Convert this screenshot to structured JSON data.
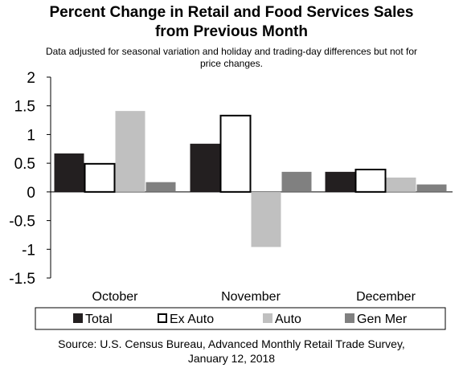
{
  "title_line1": "Percent Change in Retail and Food Services Sales",
  "title_line2": "from Previous Month",
  "subtitle_line1": "Data adjusted for seasonal variation and holiday and trading-day differences but not for",
  "subtitle_line2": "price changes.",
  "source_line1": "Source: U.S. Census Bureau, Advanced Monthly Retail Trade Survey,",
  "source_line2": "January 12, 2018",
  "colors": {
    "Total": "#231f20",
    "Ex Auto": "#ffffff",
    "Auto": "#c0c0c0",
    "Gen Mer": "#808080",
    "outline": "#000000"
  },
  "chart_data": {
    "type": "bar",
    "categories": [
      "October",
      "November",
      "December"
    ],
    "series": [
      {
        "name": "Total",
        "values": [
          0.67,
          0.84,
          0.35
        ]
      },
      {
        "name": "Ex Auto",
        "values": [
          0.49,
          1.33,
          0.39
        ]
      },
      {
        "name": "Auto",
        "values": [
          1.41,
          -0.96,
          0.25
        ]
      },
      {
        "name": "Gen Mer",
        "values": [
          0.17,
          0.35,
          0.13
        ]
      }
    ],
    "ylim": [
      -1.5,
      2
    ],
    "yticks": [
      2,
      1.5,
      1,
      0.5,
      0,
      -0.5,
      -1,
      -1.5
    ],
    "ytick_labels": [
      "2",
      "1.5",
      "1",
      "0.5",
      "0",
      "-0.5",
      "-1",
      "-1.5"
    ],
    "legend_position": "bottom",
    "grid": false
  }
}
